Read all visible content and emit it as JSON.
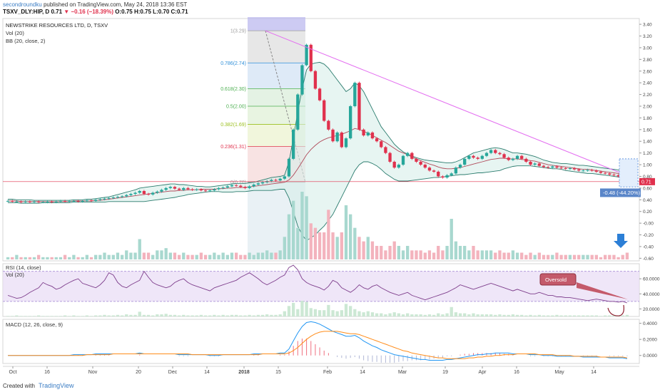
{
  "header": {
    "author": "secondroundku",
    "published": "published on TradingView.com, May 24, 2018 13:36 EST",
    "symbol": "TSXV_DLY:HIP, D",
    "last": "0.71",
    "change": "−0.16 (−18.39%)",
    "ohlc": "O:0.75 H:0.75 L:0.70 C:0.71"
  },
  "footer": {
    "created_with": "Created with",
    "brand": "TradingView"
  },
  "chart_data": {
    "type": "line",
    "title": "NEWSTRIKE RESOURCES LTD, D, TSXV",
    "indicators": [
      "Vol (20)",
      "BB (20, close, 2)"
    ],
    "price_axis": {
      "ticks": [
        "3.40",
        "3.20",
        "3.00",
        "2.80",
        "2.60",
        "2.40",
        "2.20",
        "2.00",
        "1.80",
        "1.60",
        "1.40",
        "1.20",
        "1.00",
        "0.80",
        "0.60",
        "0.40",
        "0.20",
        "-0.00",
        "-0.20",
        "-0.40",
        "-0.60"
      ],
      "ylim": [
        -0.62,
        3.45
      ]
    },
    "last_price_label": "0.71",
    "measure_label": "-0.48 (-44.20%)",
    "fibonacci": [
      {
        "label": "1(3.29)",
        "value": 3.29,
        "color": "#9e9e9e"
      },
      {
        "label": "0.786(2.74)",
        "value": 2.74,
        "color": "#2f8fd8"
      },
      {
        "label": "0.618(2.30)",
        "value": 2.3,
        "color": "#4caf50"
      },
      {
        "label": "0.5(2.00)",
        "value": 2.0,
        "color": "#4caf50"
      },
      {
        "label": "0.382(1.69)",
        "value": 1.69,
        "color": "#9bbf1e"
      },
      {
        "label": "0.236(1.31)",
        "value": 1.31,
        "color": "#e0314d"
      },
      {
        "label": "0(0.70)",
        "value": 0.7,
        "color": "#9e9e9e"
      }
    ],
    "x_axis": {
      "ticks": [
        "Oct",
        "16",
        "Nov",
        "20",
        "Dec",
        "14",
        "2018",
        "15",
        "Feb",
        "14",
        "Mar",
        "19",
        "Apr",
        "16",
        "May",
        "14"
      ]
    },
    "price_series": [
      0.38,
      0.37,
      0.37,
      0.36,
      0.37,
      0.36,
      0.37,
      0.36,
      0.36,
      0.37,
      0.36,
      0.37,
      0.38,
      0.37,
      0.38,
      0.38,
      0.37,
      0.38,
      0.39,
      0.38,
      0.4,
      0.41,
      0.42,
      0.43,
      0.44,
      0.45,
      0.46,
      0.48,
      0.5,
      0.52,
      0.55,
      0.5,
      0.49,
      0.52,
      0.54,
      0.57,
      0.6,
      0.62,
      0.59,
      0.57,
      0.6,
      0.58,
      0.57,
      0.58,
      0.56,
      0.55,
      0.56,
      0.58,
      0.6,
      0.61,
      0.63,
      0.65,
      0.64,
      0.62,
      0.6,
      0.63,
      0.66,
      0.68,
      0.7,
      0.72,
      0.74,
      0.73,
      0.76,
      0.8,
      1.1,
      1.6,
      2.2,
      2.7,
      3.05,
      2.6,
      2.3,
      2.1,
      1.75,
      1.6,
      1.4,
      1.55,
      1.3,
      1.45,
      2.0,
      2.4,
      1.6,
      1.5,
      1.55,
      1.45,
      1.4,
      1.3,
      1.2,
      1.05,
      0.95,
      1.0,
      1.15,
      1.2,
      1.1,
      1.05,
      1.0,
      0.95,
      0.9,
      0.88,
      0.8,
      0.78,
      0.82,
      0.85,
      0.95,
      1.0,
      1.1,
      1.15,
      1.12,
      1.1,
      1.15,
      1.2,
      1.25,
      1.2,
      1.18,
      1.12,
      1.08,
      1.1,
      1.15,
      1.1,
      1.05,
      1.0,
      1.02,
      0.98,
      0.96,
      0.95,
      0.97,
      0.95,
      0.94,
      0.93,
      0.94,
      0.92,
      0.9,
      0.9,
      0.91,
      0.9,
      0.88,
      0.86,
      0.85,
      0.83,
      0.82,
      0.8,
      0.78,
      0.71
    ],
    "bb_mid": [
      0.38,
      0.38,
      0.38,
      0.37,
      0.37,
      0.37,
      0.37,
      0.37,
      0.37,
      0.37,
      0.37,
      0.37,
      0.37,
      0.37,
      0.37,
      0.38,
      0.38,
      0.38,
      0.38,
      0.38,
      0.39,
      0.39,
      0.4,
      0.41,
      0.42,
      0.43,
      0.44,
      0.45,
      0.46,
      0.47,
      0.48,
      0.49,
      0.5,
      0.51,
      0.52,
      0.53,
      0.54,
      0.55,
      0.55,
      0.56,
      0.56,
      0.57,
      0.57,
      0.57,
      0.58,
      0.58,
      0.58,
      0.58,
      0.59,
      0.59,
      0.6,
      0.6,
      0.61,
      0.61,
      0.61,
      0.62,
      0.63,
      0.64,
      0.65,
      0.66,
      0.67,
      0.68,
      0.69,
      0.7,
      0.74,
      0.82,
      0.93,
      1.05,
      1.17,
      1.26,
      1.33,
      1.39,
      1.43,
      1.46,
      1.48,
      1.5,
      1.52,
      1.55,
      1.58,
      1.62,
      1.6,
      1.57,
      1.54,
      1.5,
      1.46,
      1.42,
      1.38,
      1.33,
      1.28,
      1.23,
      1.2,
      1.17,
      1.13,
      1.1,
      1.07,
      1.04,
      1.01,
      0.99,
      0.96,
      0.94,
      0.93,
      0.93,
      0.94,
      0.95,
      0.97,
      0.99,
      1.01,
      1.03,
      1.05,
      1.07,
      1.09,
      1.1,
      1.11,
      1.11,
      1.1,
      1.1,
      1.1,
      1.09,
      1.08,
      1.07,
      1.06,
      1.04,
      1.02,
      1.0,
      0.99,
      0.98,
      0.97,
      0.96,
      0.95,
      0.94,
      0.93,
      0.92,
      0.92,
      0.91,
      0.9,
      0.89,
      0.88,
      0.87,
      0.86,
      0.85,
      0.84,
      0.82
    ],
    "bb_upper": [
      0.41,
      0.41,
      0.4,
      0.4,
      0.4,
      0.4,
      0.39,
      0.39,
      0.39,
      0.39,
      0.39,
      0.39,
      0.39,
      0.39,
      0.39,
      0.4,
      0.4,
      0.4,
      0.41,
      0.41,
      0.42,
      0.43,
      0.44,
      0.45,
      0.47,
      0.49,
      0.51,
      0.53,
      0.55,
      0.57,
      0.6,
      0.61,
      0.62,
      0.63,
      0.64,
      0.65,
      0.66,
      0.67,
      0.67,
      0.66,
      0.66,
      0.65,
      0.64,
      0.63,
      0.63,
      0.62,
      0.62,
      0.63,
      0.64,
      0.65,
      0.66,
      0.67,
      0.68,
      0.68,
      0.68,
      0.69,
      0.7,
      0.72,
      0.74,
      0.76,
      0.78,
      0.79,
      0.8,
      0.82,
      1.05,
      1.45,
      1.9,
      2.3,
      2.62,
      2.72,
      2.74,
      2.75,
      2.72,
      2.65,
      2.55,
      2.45,
      2.35,
      2.25,
      2.3,
      2.4,
      2.35,
      2.25,
      2.1,
      1.95,
      1.8,
      1.65,
      1.55,
      1.45,
      1.35,
      1.28,
      1.22,
      1.18,
      1.15,
      1.12,
      1.1,
      1.08,
      1.07,
      1.06,
      1.05,
      1.04,
      1.03,
      1.03,
      1.05,
      1.08,
      1.12,
      1.16,
      1.2,
      1.22,
      1.24,
      1.26,
      1.28,
      1.29,
      1.28,
      1.26,
      1.23,
      1.2,
      1.2,
      1.19,
      1.18,
      1.16,
      1.14,
      1.11,
      1.08,
      1.06,
      1.04,
      1.03,
      1.02,
      1.02,
      1.01,
      1.0,
      0.99,
      0.99,
      0.98,
      0.97,
      0.96,
      0.95,
      0.94,
      0.93,
      0.92,
      0.91,
      0.9,
      0.89
    ],
    "bb_lower": [
      0.35,
      0.35,
      0.35,
      0.34,
      0.34,
      0.34,
      0.34,
      0.34,
      0.35,
      0.35,
      0.35,
      0.35,
      0.35,
      0.35,
      0.35,
      0.36,
      0.36,
      0.36,
      0.36,
      0.36,
      0.36,
      0.36,
      0.36,
      0.37,
      0.37,
      0.37,
      0.37,
      0.37,
      0.37,
      0.37,
      0.37,
      0.37,
      0.38,
      0.39,
      0.4,
      0.41,
      0.42,
      0.43,
      0.44,
      0.46,
      0.47,
      0.49,
      0.5,
      0.51,
      0.52,
      0.53,
      0.54,
      0.54,
      0.54,
      0.53,
      0.53,
      0.53,
      0.54,
      0.54,
      0.54,
      0.55,
      0.56,
      0.56,
      0.56,
      0.56,
      0.56,
      0.57,
      0.58,
      0.58,
      0.43,
      0.2,
      -0.05,
      -0.2,
      -0.3,
      -0.25,
      -0.2,
      -0.12,
      -0.05,
      0.05,
      0.15,
      0.3,
      0.45,
      0.6,
      0.75,
      0.9,
      1.0,
      1.05,
      1.05,
      1.02,
      0.98,
      0.92,
      0.85,
      0.8,
      0.75,
      0.72,
      0.72,
      0.72,
      0.73,
      0.74,
      0.75,
      0.76,
      0.77,
      0.78,
      0.78,
      0.79,
      0.8,
      0.81,
      0.82,
      0.83,
      0.83,
      0.84,
      0.85,
      0.86,
      0.86,
      0.87,
      0.88,
      0.89,
      0.9,
      0.93,
      0.95,
      0.97,
      0.98,
      0.98,
      0.98,
      0.98,
      0.97,
      0.96,
      0.95,
      0.94,
      0.93,
      0.93,
      0.92,
      0.9,
      0.89,
      0.88,
      0.87,
      0.86,
      0.85,
      0.85,
      0.84,
      0.83,
      0.82,
      0.81,
      0.8,
      0.79,
      0.78,
      0.77,
      0.77,
      0.75
    ],
    "volume": [
      1,
      1,
      2,
      1,
      1,
      1,
      1,
      2,
      1,
      1,
      1,
      1,
      1,
      2,
      1,
      2,
      1,
      1,
      2,
      1,
      2,
      2,
      3,
      2,
      2,
      3,
      2,
      4,
      3,
      3,
      9,
      3,
      3,
      2,
      4,
      4,
      5,
      3,
      3,
      2,
      3,
      2,
      2,
      2,
      3,
      2,
      2,
      3,
      2,
      3,
      2,
      3,
      3,
      2,
      2,
      3,
      2,
      3,
      3,
      4,
      3,
      3,
      4,
      10,
      20,
      26,
      14,
      30,
      28,
      16,
      14,
      12,
      12,
      22,
      12,
      10,
      12,
      24,
      20,
      14,
      10,
      8,
      10,
      8,
      6,
      6,
      4,
      6,
      8,
      6,
      4,
      6,
      4,
      4,
      4,
      3,
      4,
      3,
      6,
      4,
      6,
      18,
      8,
      6,
      6,
      4,
      6,
      4,
      4,
      4,
      4,
      3,
      4,
      3,
      3,
      4,
      3,
      3,
      2,
      3,
      2,
      3,
      2,
      2,
      2,
      3,
      2,
      2,
      2,
      2,
      2,
      2,
      2,
      2,
      2,
      1,
      2,
      2,
      2,
      1,
      2,
      3
    ],
    "rsi": {
      "label": "RSI (14, close)",
      "ticks": [
        "60.0000",
        "40.0000",
        "20.0000"
      ],
      "ylim": [
        10,
        80
      ],
      "upper_band": 70,
      "lower_band": 30,
      "values": [
        38,
        36,
        34,
        35,
        38,
        42,
        45,
        48,
        55,
        52,
        50,
        46,
        48,
        52,
        55,
        58,
        60,
        54,
        52,
        50,
        48,
        52,
        58,
        68,
        65,
        55,
        50,
        48,
        52,
        55,
        58,
        70,
        62,
        55,
        52,
        50,
        48,
        50,
        55,
        58,
        60,
        55,
        52,
        50,
        48,
        46,
        44,
        48,
        50,
        52,
        54,
        56,
        58,
        62,
        65,
        68,
        64,
        60,
        55,
        52,
        55,
        58,
        62,
        65,
        75,
        78,
        72,
        60,
        55,
        52,
        50,
        48,
        45,
        50,
        58,
        55,
        48,
        45,
        42,
        46,
        52,
        48,
        46,
        50,
        52,
        48,
        45,
        42,
        40,
        38,
        40,
        42,
        38,
        36,
        34,
        32,
        34,
        36,
        38,
        40,
        42,
        45,
        48,
        52,
        50,
        48,
        46,
        48,
        50,
        52,
        54,
        52,
        50,
        48,
        46,
        44,
        46,
        44,
        42,
        40,
        40,
        42,
        40,
        38,
        38,
        36,
        36,
        35,
        35,
        34,
        33,
        32,
        31,
        32,
        33,
        32,
        31,
        30,
        30,
        29,
        30,
        28
      ],
      "annotation": "Oversold"
    },
    "vol_label": "Vol (20)",
    "macd": {
      "label": "MACD (12, 26, close, 9)",
      "ticks": [
        "0.4000",
        "0.2000",
        "0.0000"
      ],
      "ylim": [
        -0.1,
        0.45
      ],
      "macd_line": [
        0,
        0,
        0,
        0,
        0,
        0,
        0,
        0,
        0,
        0,
        0,
        0,
        0,
        0,
        0,
        0.01,
        0.01,
        0.01,
        0.01,
        0.01,
        0.02,
        0.02,
        0.02,
        0.02,
        0.02,
        0.02,
        0.02,
        0.02,
        0.02,
        0.02,
        0.03,
        0.02,
        0.02,
        0.02,
        0.02,
        0.02,
        0.02,
        0.02,
        0.02,
        0.01,
        0.01,
        0.01,
        0.01,
        0.01,
        0.01,
        0.01,
        0.0,
        0.0,
        0.0,
        0.01,
        0.01,
        0.01,
        0.01,
        0.01,
        0.01,
        0.01,
        0.02,
        0.02,
        0.02,
        0.02,
        0.02,
        0.02,
        0.03,
        0.03,
        0.08,
        0.18,
        0.28,
        0.36,
        0.41,
        0.42,
        0.41,
        0.39,
        0.36,
        0.33,
        0.3,
        0.28,
        0.26,
        0.24,
        0.24,
        0.25,
        0.22,
        0.18,
        0.15,
        0.12,
        0.1,
        0.07,
        0.05,
        0.03,
        0.01,
        0.0,
        -0.01,
        -0.02,
        -0.03,
        -0.04,
        -0.05,
        -0.05,
        -0.06,
        -0.06,
        -0.06,
        -0.06,
        -0.05,
        -0.05,
        -0.04,
        -0.03,
        -0.02,
        -0.01,
        0.0,
        0.01,
        0.01,
        0.02,
        0.02,
        0.03,
        0.03,
        0.03,
        0.03,
        0.02,
        0.02,
        0.02,
        0.02,
        0.01,
        0.01,
        0.01,
        0.0,
        0.0,
        0.0,
        -0.01,
        -0.01,
        -0.01,
        -0.01,
        -0.01,
        -0.01,
        -0.02,
        -0.02,
        -0.02,
        -0.02,
        -0.02,
        -0.02,
        -0.03,
        -0.03,
        -0.03,
        -0.03,
        -0.04
      ],
      "signal_line": [
        0,
        0,
        0,
        0,
        0,
        0,
        0,
        0,
        0,
        0,
        0,
        0,
        0,
        0,
        0,
        0,
        0,
        0,
        0.01,
        0.01,
        0.01,
        0.01,
        0.01,
        0.01,
        0.02,
        0.02,
        0.02,
        0.02,
        0.02,
        0.02,
        0.02,
        0.02,
        0.02,
        0.02,
        0.02,
        0.02,
        0.02,
        0.02,
        0.02,
        0.02,
        0.02,
        0.02,
        0.01,
        0.01,
        0.01,
        0.01,
        0.01,
        0.01,
        0.01,
        0.01,
        0.01,
        0.01,
        0.01,
        0.01,
        0.01,
        0.01,
        0.01,
        0.01,
        0.02,
        0.02,
        0.02,
        0.02,
        0.02,
        0.02,
        0.03,
        0.06,
        0.1,
        0.15,
        0.2,
        0.24,
        0.27,
        0.29,
        0.3,
        0.3,
        0.3,
        0.3,
        0.29,
        0.28,
        0.27,
        0.27,
        0.26,
        0.24,
        0.22,
        0.2,
        0.18,
        0.16,
        0.14,
        0.12,
        0.1,
        0.08,
        0.06,
        0.05,
        0.03,
        0.02,
        0.01,
        0.0,
        -0.01,
        -0.02,
        -0.03,
        -0.03,
        -0.04,
        -0.04,
        -0.04,
        -0.04,
        -0.04,
        -0.03,
        -0.03,
        -0.02,
        -0.02,
        -0.01,
        -0.01,
        0.0,
        0.0,
        0.01,
        0.01,
        0.01,
        0.02,
        0.02,
        0.02,
        0.02,
        0.02,
        0.01,
        0.01,
        0.01,
        0.01,
        0.0,
        0.0,
        0.0,
        0.0,
        -0.01,
        -0.01,
        -0.01,
        -0.01,
        -0.01,
        -0.01,
        -0.02,
        -0.02,
        -0.02,
        -0.02,
        -0.02,
        -0.02,
        -0.03
      ]
    },
    "colors": {
      "up": "#26a69a",
      "down": "#e0314d",
      "bb": "#2b7c6e",
      "bb_fill": "#d7efe9",
      "trend": "#e36cf0",
      "rsi": "#7e3e8c",
      "rsi_band": "#e8dcf5",
      "macd": "#2196f3",
      "signal": "#ff8c1a",
      "price_line": "#e0314d"
    }
  }
}
